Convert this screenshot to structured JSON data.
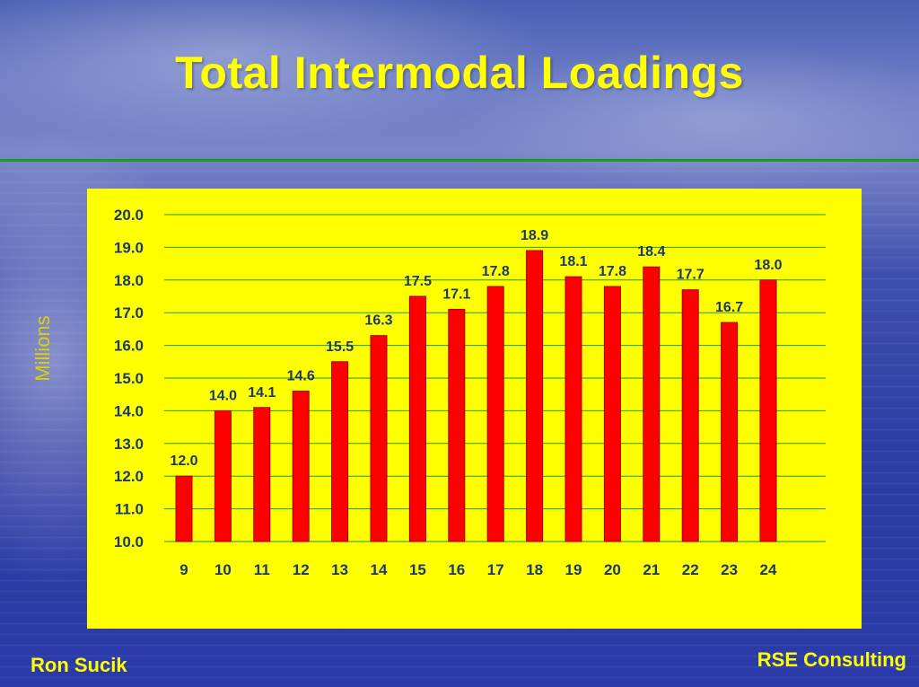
{
  "slide": {
    "title": "Total Intermodal Loadings",
    "footer_left": "Ron Sucik",
    "footer_right": "RSE Consulting"
  },
  "colors": {
    "title": "#ffff00",
    "panel": "#ffff00",
    "bar": "#ff0000",
    "grid": "#16a01a",
    "divider": "#16a01a",
    "text": "#1a3a6e"
  },
  "chart_data": {
    "type": "bar",
    "title": "",
    "xlabel": "",
    "ylabel": "Millions",
    "ylim": [
      10.0,
      20.0
    ],
    "ytick_step": 1.0,
    "yticks": [
      "10.0",
      "11.0",
      "12.0",
      "13.0",
      "14.0",
      "15.0",
      "16.0",
      "17.0",
      "18.0",
      "19.0",
      "20.0"
    ],
    "categories": [
      "9",
      "10",
      "11",
      "12",
      "13",
      "14",
      "15",
      "16",
      "17",
      "18",
      "19",
      "20",
      "21",
      "22",
      "23",
      "24"
    ],
    "values": [
      12.0,
      14.0,
      14.1,
      14.6,
      15.5,
      16.3,
      17.5,
      17.1,
      17.8,
      18.9,
      18.1,
      17.8,
      18.4,
      17.7,
      16.7,
      18.0
    ],
    "data_labels": [
      "12.0",
      "14.0",
      "14.1",
      "14.6",
      "15.5",
      "16.3",
      "17.5",
      "17.1",
      "17.8",
      "18.9",
      "18.1",
      "17.8",
      "18.4",
      "17.7",
      "16.7",
      "18.0"
    ],
    "grid": true,
    "legend": "none"
  }
}
